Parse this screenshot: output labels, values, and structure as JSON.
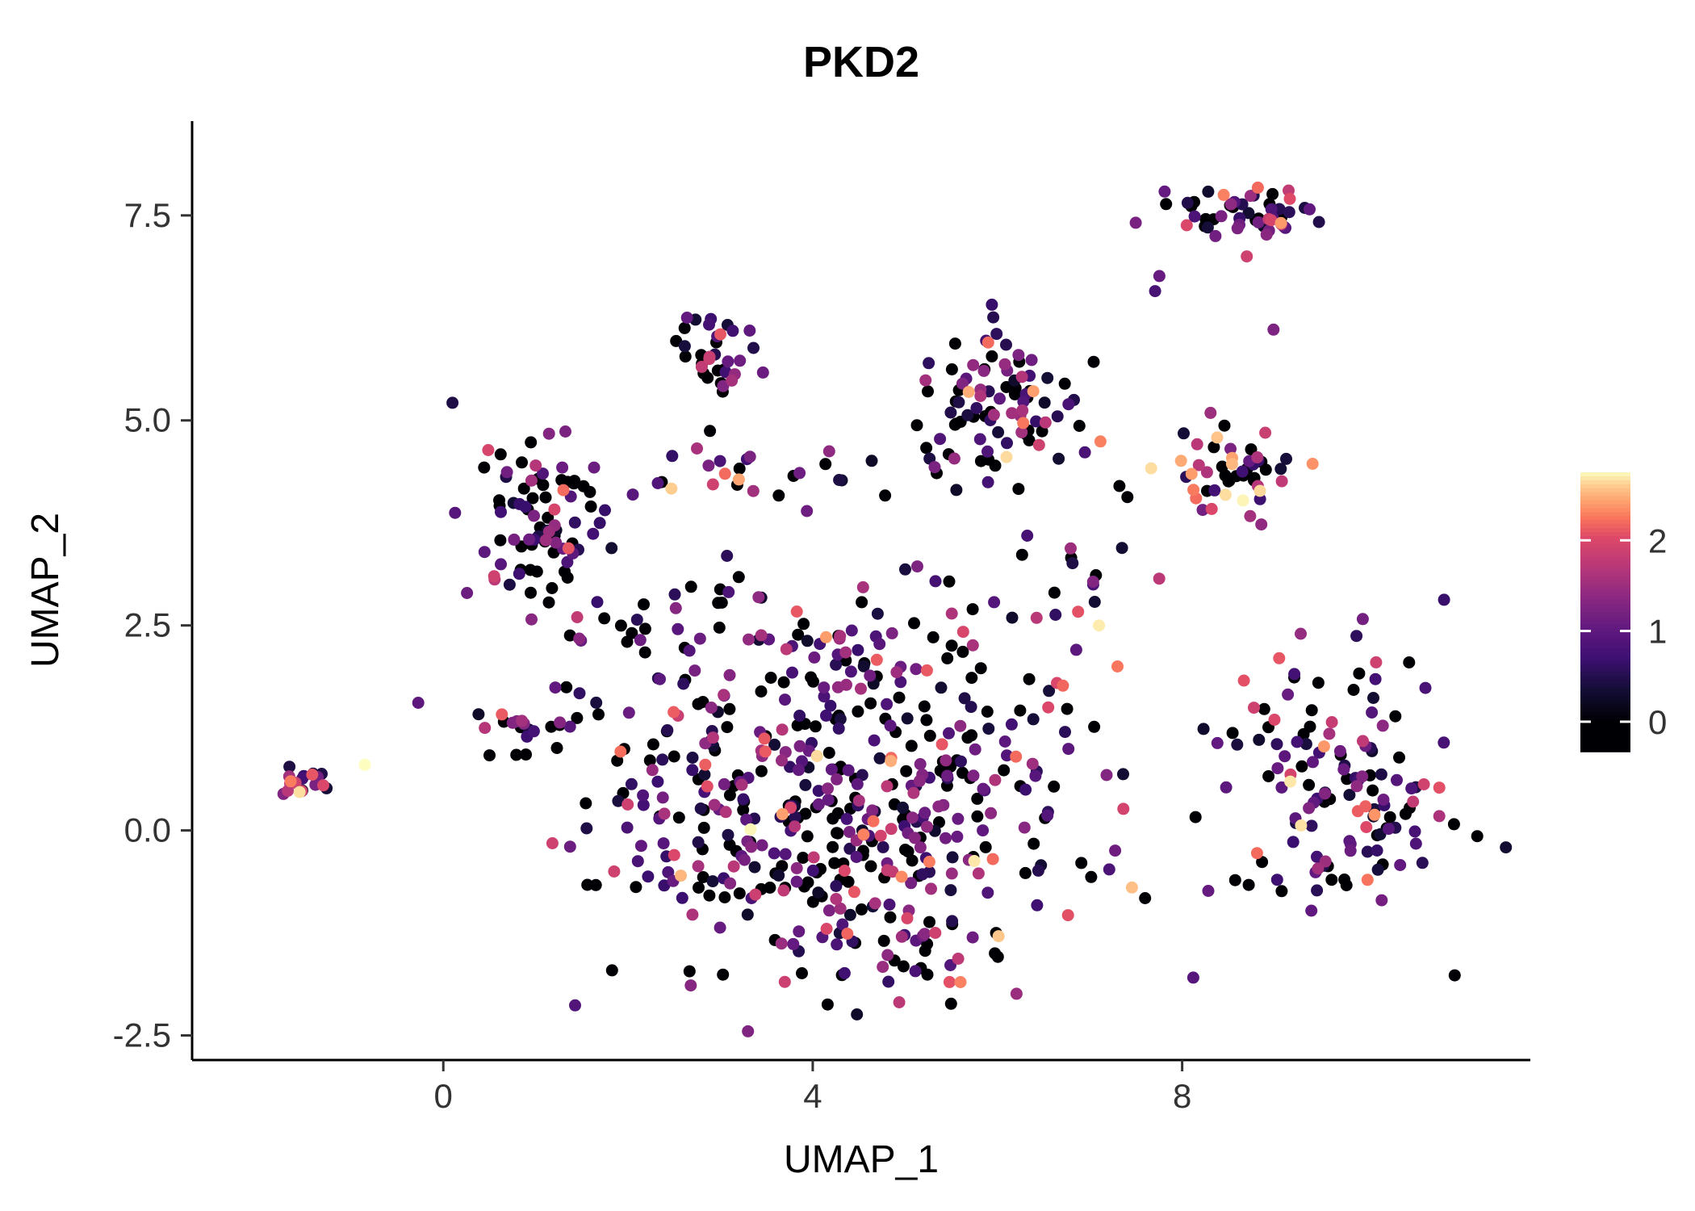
{
  "title": "PKD2",
  "axes": {
    "x_label": "UMAP_1",
    "y_label": "UMAP_2"
  },
  "chart_data": {
    "type": "scatter",
    "title": "PKD2",
    "xlabel": "UMAP_1",
    "ylabel": "UMAP_2",
    "x_range": [
      -2.72,
      11.77
    ],
    "y_range": [
      -2.8,
      8.65
    ],
    "x_ticks": [
      {
        "v": 0,
        "label": "0"
      },
      {
        "v": 4,
        "label": "4"
      },
      {
        "v": 8,
        "label": "8"
      }
    ],
    "y_ticks": [
      {
        "v": -2.5,
        "label": "-2.5"
      },
      {
        "v": 0.0,
        "label": "0.0"
      },
      {
        "v": 2.5,
        "label": "2.5"
      },
      {
        "v": 5.0,
        "label": "5.0"
      },
      {
        "v": 7.5,
        "label": "7.5"
      }
    ],
    "grid": false,
    "legend_position": "right",
    "point_radius": 7.5,
    "seed": 1337,
    "color_scale": {
      "name": "magma",
      "value_min": 0,
      "value_max": 2.75,
      "bar_value_top": 2.75,
      "bar_value_bottom": -0.33,
      "ticks": [
        {
          "v": 0,
          "label": "0"
        },
        {
          "v": 1,
          "label": "1"
        },
        {
          "v": 2,
          "label": "2"
        }
      ],
      "stops": [
        [
          0.0,
          "#000004"
        ],
        [
          0.13,
          "#140e36"
        ],
        [
          0.25,
          "#3b0f70"
        ],
        [
          0.38,
          "#641a80"
        ],
        [
          0.5,
          "#8c2981"
        ],
        [
          0.62,
          "#b73779"
        ],
        [
          0.74,
          "#de4968"
        ],
        [
          0.81,
          "#f7705c"
        ],
        [
          0.88,
          "#fe9f6d"
        ],
        [
          0.95,
          "#fece91"
        ],
        [
          1.0,
          "#fcfdbf"
        ]
      ]
    },
    "clusters": [
      {
        "name": "far-left",
        "cx": -1.5,
        "cy": 0.6,
        "sx": 0.17,
        "sy": 0.11,
        "n": 16,
        "bright": 0.3
      },
      {
        "name": "top-right-main",
        "cx": 8.6,
        "cy": 7.55,
        "sx": 0.42,
        "sy": 0.16,
        "n": 52,
        "bright": 0
      },
      {
        "name": "top-right-below",
        "cx": 7.6,
        "cy": 6.72,
        "sx": 0.12,
        "sy": 0.08,
        "n": 2,
        "bright": 0
      },
      {
        "name": "top-right-stray",
        "cx": 9.0,
        "cy": 6.1,
        "sx": 0.05,
        "sy": 0.05,
        "n": 1,
        "bright": -0.1
      },
      {
        "name": "right-mid",
        "cx": 8.6,
        "cy": 4.35,
        "sx": 0.33,
        "sy": 0.33,
        "n": 46,
        "bright": 0.05
      },
      {
        "name": "right-lower",
        "cx": 9.7,
        "cy": 0.55,
        "sx": 0.62,
        "sy": 0.78,
        "n": 135,
        "bright": 0
      },
      {
        "name": "top-mid",
        "cx": 2.85,
        "cy": 5.7,
        "sx": 0.25,
        "sy": 0.27,
        "n": 34,
        "bright": 0
      },
      {
        "name": "upper-mid",
        "cx": 6.05,
        "cy": 5.15,
        "sx": 0.45,
        "sy": 0.45,
        "n": 88,
        "bright": 0
      },
      {
        "name": "left-upper",
        "cx": 1.05,
        "cy": 3.75,
        "sx": 0.38,
        "sy": 0.5,
        "n": 85,
        "bright": -0.05
      },
      {
        "name": "mid-band",
        "cx": 3.9,
        "cy": 4.3,
        "sx": 0.85,
        "sy": 0.18,
        "n": 24,
        "bright": 0.05
      },
      {
        "name": "left-arm",
        "cx": 0.85,
        "cy": 1.3,
        "sx": 0.32,
        "sy": 0.18,
        "n": 20,
        "bright": 0
      },
      {
        "name": "central",
        "cx": 4.2,
        "cy": 0.35,
        "sx": 1.35,
        "sy": 0.95,
        "n": 420,
        "bright": 0
      },
      {
        "name": "central-upper-band",
        "cx": 4.7,
        "cy": 2.3,
        "sx": 1.15,
        "sy": 0.4,
        "n": 55,
        "bright": 0
      },
      {
        "name": "bottom-tail",
        "cx": 4.7,
        "cy": -1.55,
        "sx": 0.85,
        "sy": 0.3,
        "n": 38,
        "bright": 0
      },
      {
        "name": "left-mid-scatter",
        "cx": 2.1,
        "cy": 2.2,
        "sx": 0.5,
        "sy": 0.6,
        "n": 30,
        "bright": -0.05
      },
      {
        "name": "gap-sparse",
        "cx": 7.0,
        "cy": 3.3,
        "sx": 0.5,
        "sy": 0.6,
        "n": 18,
        "bright": 0
      }
    ],
    "extra_points": [
      [
        -0.85,
        0.8,
        2.75
      ],
      [
        7.1,
        2.5,
        2.7
      ],
      [
        7.3,
        2.0,
        2.25
      ],
      [
        3.05,
        4.35,
        2.2
      ],
      [
        3.2,
        4.28,
        2.45
      ],
      [
        2.92,
        4.22,
        1.9
      ],
      [
        3.0,
        6.05,
        2.1
      ],
      [
        2.88,
        5.75,
        1.85
      ],
      [
        5.9,
        5.95,
        2.2
      ],
      [
        6.45,
        4.7,
        1.9
      ],
      [
        8.15,
        4.05,
        2.2
      ],
      [
        8.32,
        3.92,
        2.0
      ],
      [
        8.9,
        4.85,
        1.85
      ],
      [
        8.82,
        4.2,
        1.7
      ],
      [
        8.45,
        7.75,
        2.3
      ],
      [
        8.05,
        7.38,
        2.0
      ],
      [
        8.7,
        7.0,
        1.9
      ],
      [
        9.05,
        2.1,
        2.1
      ],
      [
        10.1,
        2.05,
        1.9
      ],
      [
        9.0,
        1.35,
        2.0
      ],
      [
        10.5,
        0.35,
        1.8
      ],
      [
        4.55,
        -0.05,
        2.3
      ],
      [
        5.95,
        -0.35,
        2.2
      ],
      [
        4.45,
        -0.75,
        2.1
      ],
      [
        5.6,
        -1.85,
        2.3
      ],
      [
        4.15,
        -1.2,
        2.0
      ],
      [
        6.2,
        0.9,
        2.2
      ],
      [
        5.4,
        1.05,
        2.1
      ],
      [
        6.55,
        1.5,
        2.0
      ],
      [
        2.5,
        -0.3,
        2.0
      ],
      [
        1.85,
        -0.5,
        1.9
      ],
      [
        1.3,
        4.15,
        2.2
      ],
      [
        0.55,
        3.1,
        1.9
      ],
      [
        1.45,
        2.6,
        1.8
      ],
      [
        1.0,
        4.45,
        1.7
      ],
      [
        0.45,
        1.25,
        1.7
      ],
      [
        -1.42,
        0.68,
        2.1
      ],
      [
        -1.6,
        0.58,
        1.9
      ],
      [
        -1.3,
        0.55,
        2.0
      ]
    ]
  }
}
